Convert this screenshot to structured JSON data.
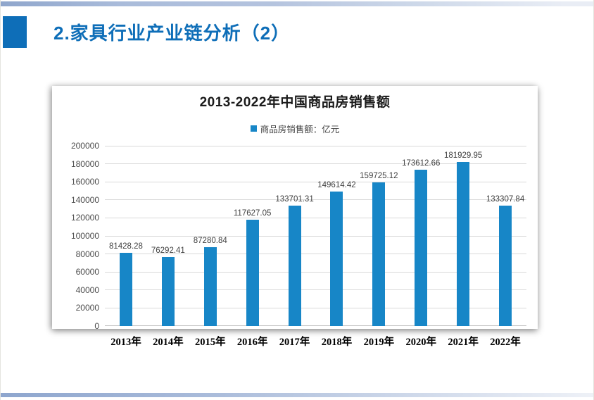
{
  "slide": {
    "title": "2.家具行业产业链分析（2）",
    "accent_color": "#0e6eb8",
    "title_color": "#0e6eb8"
  },
  "chart_data": {
    "type": "bar",
    "title": "2013-2022年中国商品房销售额",
    "legend": "商品房销售额：亿元",
    "categories": [
      "2013年",
      "2014年",
      "2015年",
      "2016年",
      "2017年",
      "2018年",
      "2019年",
      "2020年",
      "2021年",
      "2022年"
    ],
    "values": [
      81428.28,
      76292.41,
      87280.84,
      117627.05,
      133701.31,
      149614.42,
      159725.12,
      173612.66,
      181929.95,
      133307.84
    ],
    "ylim": [
      0,
      200000
    ],
    "ytick_step": 20000,
    "bar_color": "#1786c7",
    "grid": true,
    "gridline_color": "#d9d9d9",
    "legend_position": "top-center",
    "value_labels": true
  }
}
